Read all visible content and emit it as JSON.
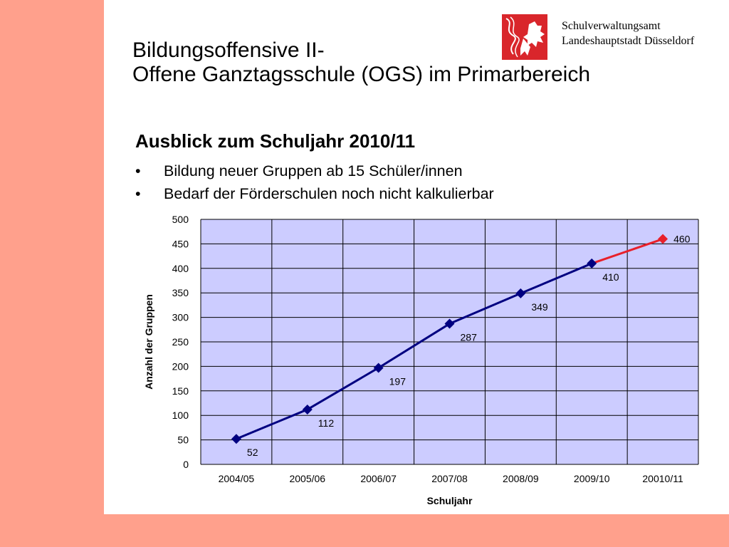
{
  "header": {
    "title_line1": "Bildungsoffensive II-",
    "title_line2": "Offene Ganztagsschule  (OGS) im Primarbereich",
    "org_line1": "Schulverwaltungsamt",
    "org_line2": "Landeshauptstadt Düsseldorf",
    "logo_icon": "duesseldorf-lion-icon",
    "logo_color": "#d9262b"
  },
  "content": {
    "subtitle": "Ausblick zum Schuljahr 2010/11",
    "bullet_symbol": "•",
    "bullets": [
      "Bildung neuer Gruppen ab 15 Schüler/innen",
      "Bedarf der Förderschulen noch nicht kalkulierbar"
    ]
  },
  "colors": {
    "slide_background": "#ffffff",
    "side_band": "#ffa08c",
    "plot_area": "#ccccff",
    "actual_series": "#000080",
    "forecast_series": "#e8202a"
  },
  "chart_data": {
    "type": "line",
    "categories": [
      "2004/05",
      "2005/06",
      "2006/07",
      "2007/08",
      "2008/09",
      "2009/10",
      "20010/11"
    ],
    "values": [
      52,
      112,
      197,
      287,
      349,
      410,
      460
    ],
    "forecast_from_index": 5,
    "xlabel": "Schuljahr",
    "ylabel": "Anzahl der Gruppen",
    "ylim": [
      0,
      500
    ],
    "yticks": [
      0,
      50,
      100,
      150,
      200,
      250,
      300,
      350,
      400,
      450,
      500
    ],
    "grid": true,
    "legend": "none"
  }
}
